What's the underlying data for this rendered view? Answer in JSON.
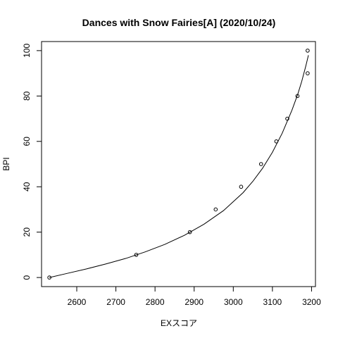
{
  "chart_data": {
    "type": "scatter",
    "title": "Dances with Snow Fairies[A] (2020/10/24)",
    "xlabel": "EXスコア",
    "ylabel": "BPI",
    "xlim": [
      2510,
      3210
    ],
    "ylim": [
      -4,
      104
    ],
    "xticks": [
      2600,
      2700,
      2800,
      2900,
      3000,
      3100,
      3200
    ],
    "yticks": [
      0,
      20,
      40,
      60,
      80,
      100
    ],
    "grid": false,
    "series": [
      {
        "kind": "points",
        "x": [
          2530,
          2752,
          2889,
          2955,
          3020,
          3071,
          3110,
          3138,
          3164,
          3190,
          3190
        ],
        "y": [
          0,
          10,
          20,
          30,
          40,
          50,
          60,
          70,
          80,
          90,
          100
        ]
      },
      {
        "kind": "line",
        "x": [
          2530,
          2575,
          2625,
          2675,
          2725,
          2775,
          2825,
          2875,
          2925,
          2975,
          3025,
          3050,
          3075,
          3100,
          3125,
          3150,
          3165,
          3175,
          3185,
          3192
        ],
        "y": [
          0,
          1.8,
          3.8,
          6,
          8.4,
          11.3,
          14.6,
          18.6,
          23.5,
          29.5,
          37.4,
          42.4,
          48.2,
          55.2,
          63.6,
          73.8,
          80.9,
          86.5,
          93,
          98
        ]
      }
    ]
  }
}
